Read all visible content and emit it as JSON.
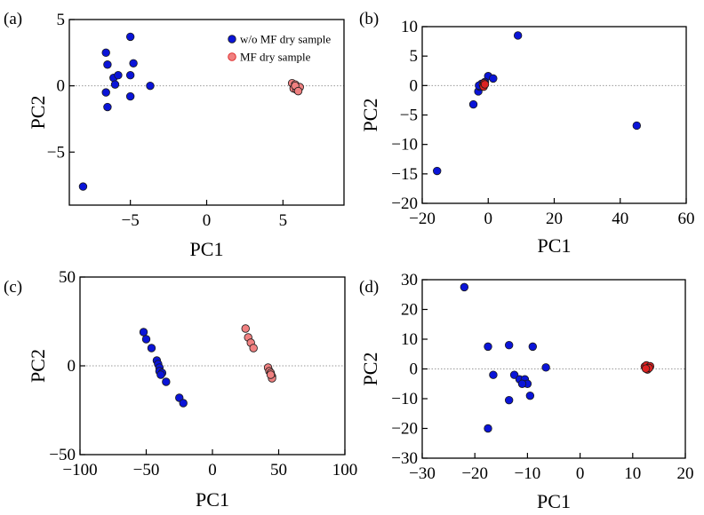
{
  "colors": {
    "blue": "#0a14d8",
    "red": "#dd2222",
    "pink": "#f08080",
    "outline": "#1a1a1a",
    "zero_line": "#9a9a9a"
  },
  "legend": {
    "blue_label": "w/o MF dry sample",
    "red_label": "MF dry sample"
  },
  "chart_data": [
    {
      "panel": "(a)",
      "type": "scatter",
      "xlabel": "PC1",
      "ylabel": "PC2",
      "xlim": [
        -9,
        9
      ],
      "ylim": [
        -9,
        5
      ],
      "xticks": [
        -5,
        0,
        5
      ],
      "yticks": [
        -5,
        0,
        5
      ],
      "xticklabels": [
        "−5",
        "0",
        "5"
      ],
      "yticklabels": [
        "−5",
        "0",
        "5"
      ],
      "legend": "top-right",
      "series": [
        {
          "name": "w/o MF dry sample",
          "color": "#0a14d8",
          "x": [
            -5.0,
            -6.6,
            -6.5,
            -6.1,
            -4.8,
            -5.8,
            -5.0,
            -3.7,
            -6.6,
            -6.0,
            -5.0,
            -6.5,
            -8.1
          ],
          "y": [
            3.7,
            2.5,
            1.6,
            0.6,
            1.7,
            0.8,
            0.8,
            0.0,
            -0.5,
            0.1,
            -0.8,
            -1.6,
            -7.6
          ]
        },
        {
          "name": "MF dry sample",
          "color": "#dd2222",
          "fill": "#f08080",
          "x": [
            5.6,
            5.8,
            6.0,
            5.7,
            5.9,
            6.1,
            5.8,
            6.0
          ],
          "y": [
            0.2,
            0.1,
            -0.1,
            -0.2,
            -0.3,
            -0.1,
            0.0,
            -0.4
          ]
        }
      ]
    },
    {
      "panel": "(b)",
      "type": "scatter",
      "xlabel": "PC1",
      "ylabel": "PC2",
      "xlim": [
        -20,
        60
      ],
      "ylim": [
        -20,
        10
      ],
      "xticks": [
        -20,
        0,
        20,
        40,
        60
      ],
      "yticks": [
        -20,
        -15,
        -10,
        -5,
        0,
        5,
        10
      ],
      "xticklabels": [
        "−20",
        "0",
        "20",
        "40",
        "60"
      ],
      "yticklabels": [
        "−20",
        "−15",
        "−10",
        "−5",
        "0",
        "5",
        "10"
      ],
      "series": [
        {
          "name": "w/o MF dry sample",
          "color": "#0a14d8",
          "x": [
            9.0,
            45.0,
            -15.5,
            -4.5,
            -3.0,
            -2.5,
            -2.0,
            0.0,
            1.5,
            -1.0,
            -2.8
          ],
          "y": [
            8.5,
            -6.8,
            -14.5,
            -3.2,
            -1.0,
            -0.2,
            0.3,
            1.6,
            1.2,
            0.6,
            0.0
          ],
          "fill": "#0a14d8"
        },
        {
          "name": "MF dry sample",
          "color": "#dd2222",
          "fill": "#dd2222",
          "x": [
            -1.6,
            -1.2,
            -1.4,
            -1.0
          ],
          "y": [
            0.1,
            0.4,
            -0.2,
            0.2
          ]
        }
      ]
    },
    {
      "panel": "(c)",
      "type": "scatter",
      "xlabel": "PC1",
      "ylabel": "PC2",
      "xlim": [
        -100,
        100
      ],
      "ylim": [
        -50,
        50
      ],
      "xticks": [
        -100,
        -50,
        0,
        50,
        100
      ],
      "yticks": [
        -50,
        0,
        50
      ],
      "xticklabels": [
        "−100",
        "−50",
        "0",
        "50",
        "100"
      ],
      "yticklabels": [
        "−50",
        "0",
        "50"
      ],
      "series": [
        {
          "name": "w/o MF dry sample",
          "color": "#0a14d8",
          "fill": "#0a14d8",
          "x": [
            -52,
            -50,
            -46,
            -42,
            -41,
            -40,
            -40,
            -38,
            -39,
            -35,
            -25,
            -22
          ],
          "y": [
            19,
            15,
            10,
            3,
            1,
            -1,
            -3,
            -4,
            -5,
            -9,
            -18,
            -21
          ]
        },
        {
          "name": "MF dry sample",
          "color": "#dd2222",
          "fill": "#f08080",
          "x": [
            25,
            27,
            29,
            31,
            42,
            43,
            44,
            45,
            45,
            44
          ],
          "y": [
            21,
            16,
            13,
            10,
            -1,
            -3,
            -4,
            -6,
            -7,
            -5
          ]
        }
      ]
    },
    {
      "panel": "(d)",
      "type": "scatter",
      "xlabel": "PC1",
      "ylabel": "PC2",
      "xlim": [
        -30,
        20
      ],
      "ylim": [
        -30,
        30
      ],
      "xticks": [
        -30,
        -20,
        -10,
        0,
        10,
        20
      ],
      "yticks": [
        -30,
        -20,
        -10,
        0,
        10,
        20,
        30
      ],
      "xticklabels": [
        "−30",
        "−20",
        "−10",
        "0",
        "10",
        "20"
      ],
      "yticklabels": [
        "−30",
        "−20",
        "−10",
        "0",
        "10",
        "20",
        "30"
      ],
      "series": [
        {
          "name": "w/o MF dry sample",
          "color": "#0a14d8",
          "fill": "#0a14d8",
          "x": [
            -22,
            -17.5,
            -13.5,
            -9,
            -16.5,
            -12.5,
            -11.5,
            -10.5,
            -10,
            -11,
            -6.5,
            -13.5,
            -9.5,
            -17.5
          ],
          "y": [
            27.5,
            7.5,
            8,
            7.5,
            -2,
            -2,
            -3.5,
            -3.5,
            -5,
            -5,
            0.5,
            -10.5,
            -9,
            -20
          ]
        },
        {
          "name": "MF dry sample",
          "color": "#dd2222",
          "fill": "#dd2222",
          "x": [
            12.3,
            12.6,
            13.0,
            13.3,
            12.8,
            13.1,
            12.5
          ],
          "y": [
            0.8,
            1.2,
            0.4,
            0.9,
            -0.2,
            0.3,
            0.1
          ]
        }
      ]
    }
  ]
}
